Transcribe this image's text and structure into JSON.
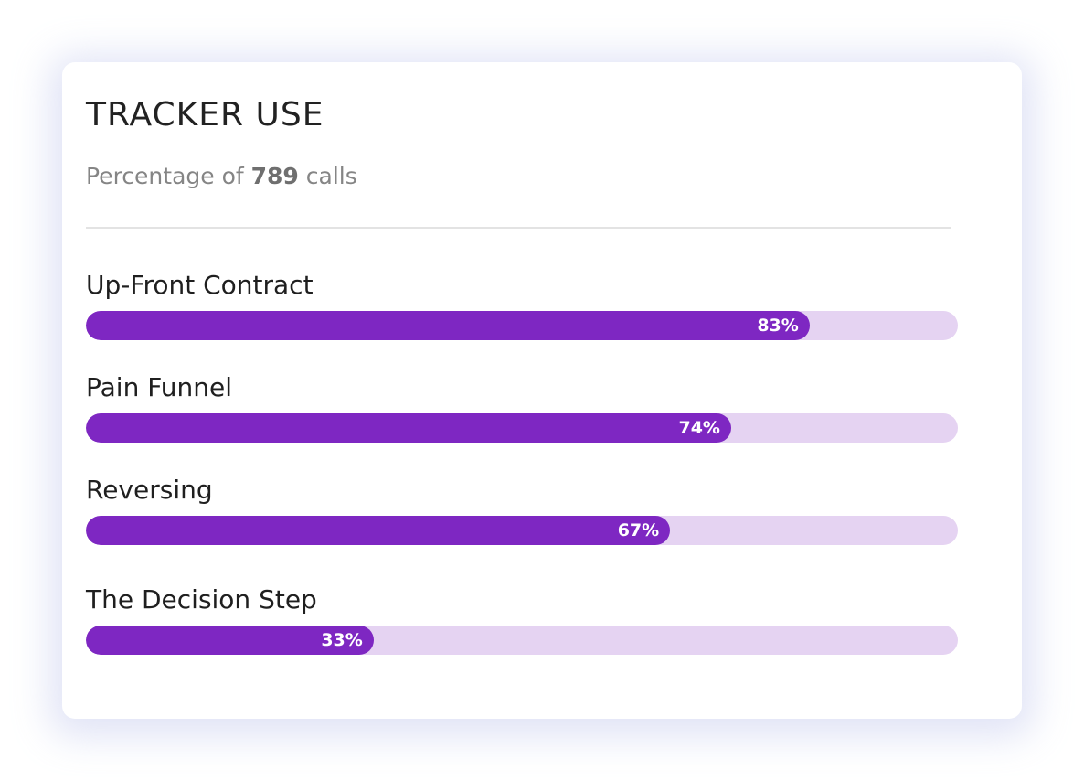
{
  "card": {
    "title": "TRACKER USE",
    "subtitle_prefix": "Percentage of ",
    "subtitle_count": "789",
    "subtitle_suffix": " calls"
  },
  "colors": {
    "bar_fill": "#7e27c2",
    "bar_track": "#e5d3f2",
    "title_text": "#222222",
    "subtitle_text": "#858585"
  },
  "trackers": [
    {
      "label": "Up-Front Contract",
      "percent": 83,
      "percent_label": "83%"
    },
    {
      "label": "Pain Funnel",
      "percent": 74,
      "percent_label": "74%"
    },
    {
      "label": "Reversing",
      "percent": 67,
      "percent_label": "67%"
    },
    {
      "label": "The Decision Step",
      "percent": 33,
      "percent_label": "33%"
    }
  ]
}
